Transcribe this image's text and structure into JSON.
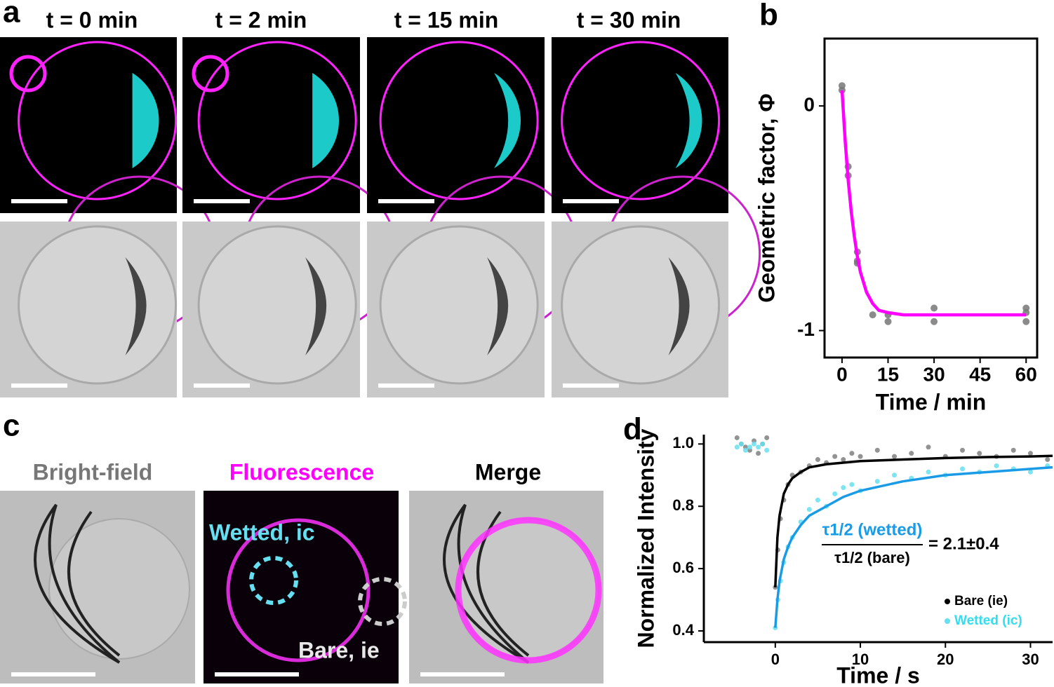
{
  "panels": {
    "labels": [
      "a",
      "b",
      "c",
      "d"
    ],
    "a": {
      "times": [
        "t = 0 min",
        "t = 2 min",
        "t = 15 min",
        "t = 30 min"
      ]
    },
    "c": {
      "titles": [
        "Bright-field",
        "Fluorescence",
        "Merge"
      ],
      "wetted": "Wetted, ic",
      "bare": "Bare, ie"
    }
  },
  "chart_data": [
    {
      "type": "scatter",
      "xlabel": "Time / min",
      "ylabel": "Geometric factor, Φ",
      "xlim": [
        -5.7,
        63.6
      ],
      "ylim": [
        -1.12,
        0.3
      ],
      "xticks": [
        0,
        15,
        30,
        45,
        60
      ],
      "yticks": [
        0,
        -1
      ],
      "series": [
        {
          "kind": "scatter",
          "color": "#777777",
          "x": [
            0,
            0,
            2,
            2,
            5,
            5,
            5,
            10,
            15,
            15,
            30,
            30,
            60,
            60,
            60
          ],
          "values": [
            0.09,
            0.07,
            -0.27,
            -0.31,
            -0.65,
            -0.69,
            -0.7,
            -0.93,
            -0.93,
            -0.96,
            -0.9,
            -0.96,
            -0.9,
            -0.92,
            -0.96
          ]
        },
        {
          "kind": "line",
          "color": "#ff00ff",
          "x": [
            0,
            1,
            2,
            3,
            4,
            5,
            6,
            8,
            10,
            12,
            15,
            20,
            30,
            45,
            60
          ],
          "values": [
            0.07,
            -0.15,
            -0.33,
            -0.47,
            -0.58,
            -0.67,
            -0.74,
            -0.83,
            -0.88,
            -0.91,
            -0.92,
            -0.93,
            -0.93,
            -0.93,
            -0.93
          ]
        }
      ]
    },
    {
      "type": "scatter",
      "xlabel": "Time / s",
      "ylabel": "Normalized Intensity",
      "xlim": [
        -8.4,
        32.6
      ],
      "ylim": [
        0.364,
        1.03
      ],
      "xticks": [
        0,
        10,
        20,
        30
      ],
      "yticks": [
        0.4,
        0.6,
        0.8,
        {
          "value": 1,
          "label": "1.0"
        }
      ],
      "legend": "lower right",
      "annotation": {
        "numerator": "τ1/2 (wetted)",
        "denominator": "τ1/2 (bare)",
        "result": "= 2.1±0.4"
      },
      "series": [
        {
          "kind": "scatter",
          "name": "Bare (ie)",
          "color": "#808080",
          "x": [
            -4.5,
            -4,
            -3.5,
            -3,
            -2.5,
            -2,
            -1.5,
            -1,
            0,
            0.3,
            0.6,
            1,
            1.5,
            2,
            3,
            4,
            5,
            6,
            7,
            8,
            9,
            10,
            12,
            14,
            16,
            18,
            20,
            22,
            24,
            26,
            28,
            30,
            32
          ],
          "values": [
            1.02,
            1.0,
            0.99,
            0.98,
            1.01,
            0.97,
            1.0,
            1.02,
            0.54,
            0.66,
            0.76,
            0.82,
            0.87,
            0.9,
            0.91,
            0.93,
            0.95,
            0.94,
            0.96,
            0.95,
            0.97,
            0.96,
            0.98,
            0.96,
            0.97,
            0.99,
            0.96,
            0.98,
            0.97,
            0.96,
            0.98,
            0.97,
            0.95
          ]
        },
        {
          "kind": "scatter",
          "name": "Wetted (ic)",
          "color": "#66e0f0",
          "x": [
            -4.5,
            -4,
            -3.5,
            -3,
            -2.5,
            -2,
            -1.5,
            -1,
            0,
            0.3,
            0.6,
            1,
            1.5,
            2,
            3,
            4,
            5,
            6,
            7,
            8,
            9,
            10,
            12,
            14,
            16,
            18,
            20,
            22,
            24,
            26,
            28,
            30,
            32
          ],
          "values": [
            0.99,
            1.0,
            0.98,
            0.99,
            1.0,
            0.99,
            1.0,
            0.98,
            0.41,
            0.5,
            0.56,
            0.62,
            0.67,
            0.7,
            0.75,
            0.79,
            0.82,
            0.8,
            0.84,
            0.86,
            0.87,
            0.85,
            0.88,
            0.9,
            0.89,
            0.91,
            0.9,
            0.92,
            0.91,
            0.93,
            0.92,
            0.91,
            0.93
          ]
        },
        {
          "kind": "line",
          "color": "#000000",
          "x": [
            0,
            0.25,
            0.5,
            1,
            1.5,
            2,
            3,
            4,
            6,
            8,
            10,
            15,
            20,
            25,
            30,
            32.6
          ],
          "values": [
            0.54,
            0.7,
            0.77,
            0.84,
            0.87,
            0.89,
            0.91,
            0.925,
            0.935,
            0.94,
            0.945,
            0.95,
            0.955,
            0.958,
            0.96,
            0.962
          ]
        },
        {
          "kind": "line",
          "color": "#1a9be6",
          "x": [
            0,
            0.25,
            0.5,
            1,
            1.5,
            2,
            3,
            4,
            6,
            8,
            10,
            15,
            20,
            25,
            30,
            32.6
          ],
          "values": [
            0.41,
            0.5,
            0.56,
            0.63,
            0.67,
            0.7,
            0.74,
            0.77,
            0.8,
            0.83,
            0.85,
            0.88,
            0.9,
            0.91,
            0.92,
            0.925
          ]
        }
      ]
    }
  ]
}
